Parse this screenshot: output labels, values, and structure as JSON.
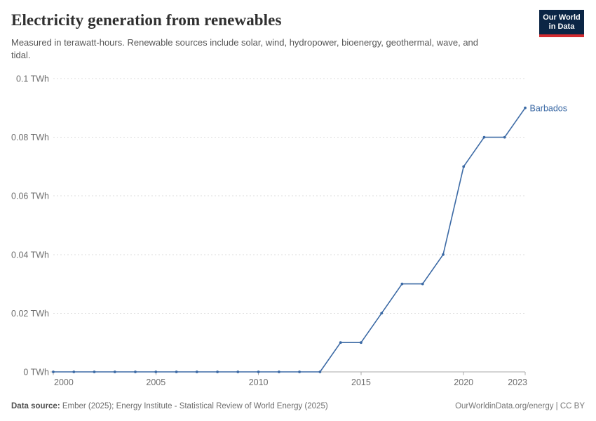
{
  "header": {
    "title": "Electricity generation from renewables",
    "subtitle": "Measured in terawatt-hours. Renewable sources include solar, wind, hydropower, bioenergy, geothermal, wave, and tidal.",
    "logo": {
      "line1": "Our World",
      "line2": "in Data"
    }
  },
  "chart_data": {
    "type": "line",
    "title": "Electricity generation from renewables",
    "unit": "TWh",
    "xlim": [
      2000,
      2023
    ],
    "ylim": [
      0,
      0.1
    ],
    "grid": "horizontal-dashed",
    "legend_position": "end-of-line-label",
    "x_ticks": [
      2000,
      2005,
      2010,
      2015,
      2020,
      2023
    ],
    "y_ticks": [
      0,
      0.02,
      0.04,
      0.06,
      0.08,
      0.1
    ],
    "y_tick_labels": [
      "0 TWh",
      "0.02 TWh",
      "0.04 TWh",
      "0.06 TWh",
      "0.08 TWh",
      "0.1 TWh"
    ],
    "series": [
      {
        "name": "Barbados",
        "color": "#3c6aa5",
        "x": [
          2000,
          2001,
          2002,
          2003,
          2004,
          2005,
          2006,
          2007,
          2008,
          2009,
          2010,
          2011,
          2012,
          2013,
          2014,
          2015,
          2016,
          2017,
          2018,
          2019,
          2020,
          2021,
          2022,
          2023
        ],
        "values": [
          0,
          0,
          0,
          0,
          0,
          0,
          0,
          0,
          0,
          0,
          0,
          0,
          0,
          0,
          0.01,
          0.01,
          0.02,
          0.03,
          0.03,
          0.04,
          0.07,
          0.08,
          0.08,
          0.09
        ]
      }
    ]
  },
  "footer": {
    "source_label": "Data source:",
    "source_text": " Ember (2025); Energy Institute - Statistical Review of World Energy (2025)",
    "credit": "OurWorldinData.org/energy | CC BY"
  },
  "colors": {
    "line": "#3c6aa5",
    "grid": "#dcdcdc",
    "axis": "#a8a8a8",
    "tick_label": "#6e6e6e",
    "logo_bg": "#0b2545",
    "logo_bar": "#d42b2f"
  }
}
